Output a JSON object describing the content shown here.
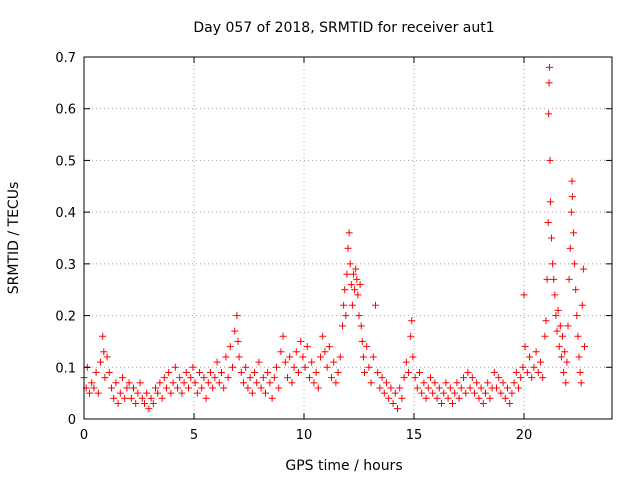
{
  "chart_data": {
    "type": "scatter",
    "title": "Day 057 of 2018, SRMTID for receiver aut1",
    "xlabel": "GPS time / hours",
    "ylabel": "SRMTID / TECUs",
    "xlim": [
      0,
      24
    ],
    "ylim": [
      0,
      0.7
    ],
    "xticks": [
      0,
      5,
      10,
      15,
      20
    ],
    "yticks": [
      0,
      0.1,
      0.2,
      0.3,
      0.4,
      0.5,
      0.6,
      0.7
    ],
    "xtick_labels": [
      "0",
      "5",
      "10",
      "15",
      "20"
    ],
    "ytick_labels": [
      "0",
      "0.1",
      "0.2",
      "0.3",
      "0.4",
      "0.5",
      "0.6",
      "0.7"
    ],
    "grid": true,
    "marker": "+",
    "color": "#ff0000",
    "series": [
      {
        "name": "SRMTID",
        "points": [
          [
            0.0,
            0.08
          ],
          [
            0.1,
            0.06
          ],
          [
            0.15,
            0.1
          ],
          [
            0.25,
            0.05
          ],
          [
            0.35,
            0.07
          ],
          [
            0.45,
            0.06
          ],
          [
            0.55,
            0.09
          ],
          [
            0.65,
            0.05
          ],
          [
            0.75,
            0.11
          ],
          [
            0.85,
            0.16
          ],
          [
            0.9,
            0.13
          ],
          [
            0.95,
            0.08
          ],
          [
            1.05,
            0.12
          ],
          [
            1.15,
            0.09
          ],
          [
            1.25,
            0.06
          ],
          [
            1.35,
            0.04
          ],
          [
            1.45,
            0.07
          ],
          [
            1.55,
            0.03
          ],
          [
            1.65,
            0.05
          ],
          [
            1.75,
            0.08
          ],
          [
            1.85,
            0.04
          ],
          [
            1.95,
            0.06
          ],
          [
            2.05,
            0.07
          ],
          [
            2.15,
            0.04
          ],
          [
            2.25,
            0.06
          ],
          [
            2.35,
            0.03
          ],
          [
            2.45,
            0.05
          ],
          [
            2.55,
            0.07
          ],
          [
            2.65,
            0.04
          ],
          [
            2.75,
            0.03
          ],
          [
            2.85,
            0.05
          ],
          [
            2.95,
            0.02
          ],
          [
            3.05,
            0.04
          ],
          [
            3.15,
            0.03
          ],
          [
            3.25,
            0.06
          ],
          [
            3.35,
            0.05
          ],
          [
            3.45,
            0.07
          ],
          [
            3.55,
            0.04
          ],
          [
            3.65,
            0.08
          ],
          [
            3.75,
            0.06
          ],
          [
            3.85,
            0.09
          ],
          [
            3.95,
            0.05
          ],
          [
            4.05,
            0.07
          ],
          [
            4.15,
            0.1
          ],
          [
            4.25,
            0.06
          ],
          [
            4.35,
            0.08
          ],
          [
            4.45,
            0.05
          ],
          [
            4.55,
            0.07
          ],
          [
            4.65,
            0.09
          ],
          [
            4.75,
            0.06
          ],
          [
            4.85,
            0.08
          ],
          [
            4.95,
            0.1
          ],
          [
            5.05,
            0.07
          ],
          [
            5.15,
            0.05
          ],
          [
            5.25,
            0.09
          ],
          [
            5.35,
            0.06
          ],
          [
            5.45,
            0.08
          ],
          [
            5.55,
            0.04
          ],
          [
            5.65,
            0.07
          ],
          [
            5.75,
            0.09
          ],
          [
            5.85,
            0.06
          ],
          [
            5.95,
            0.08
          ],
          [
            6.05,
            0.11
          ],
          [
            6.15,
            0.07
          ],
          [
            6.25,
            0.09
          ],
          [
            6.35,
            0.06
          ],
          [
            6.45,
            0.12
          ],
          [
            6.55,
            0.08
          ],
          [
            6.65,
            0.14
          ],
          [
            6.75,
            0.1
          ],
          [
            6.85,
            0.17
          ],
          [
            6.95,
            0.2
          ],
          [
            7.0,
            0.15
          ],
          [
            7.05,
            0.12
          ],
          [
            7.15,
            0.09
          ],
          [
            7.25,
            0.07
          ],
          [
            7.35,
            0.1
          ],
          [
            7.45,
            0.06
          ],
          [
            7.55,
            0.08
          ],
          [
            7.65,
            0.05
          ],
          [
            7.75,
            0.09
          ],
          [
            7.85,
            0.07
          ],
          [
            7.95,
            0.11
          ],
          [
            8.05,
            0.06
          ],
          [
            8.15,
            0.08
          ],
          [
            8.25,
            0.05
          ],
          [
            8.35,
            0.09
          ],
          [
            8.45,
            0.07
          ],
          [
            8.55,
            0.04
          ],
          [
            8.65,
            0.08
          ],
          [
            8.75,
            0.1
          ],
          [
            8.85,
            0.06
          ],
          [
            8.95,
            0.13
          ],
          [
            9.05,
            0.16
          ],
          [
            9.15,
            0.11
          ],
          [
            9.25,
            0.08
          ],
          [
            9.35,
            0.12
          ],
          [
            9.45,
            0.07
          ],
          [
            9.55,
            0.1
          ],
          [
            9.65,
            0.13
          ],
          [
            9.75,
            0.09
          ],
          [
            9.85,
            0.15
          ],
          [
            9.95,
            0.12
          ],
          [
            10.05,
            0.1
          ],
          [
            10.15,
            0.14
          ],
          [
            10.25,
            0.08
          ],
          [
            10.35,
            0.11
          ],
          [
            10.45,
            0.07
          ],
          [
            10.55,
            0.09
          ],
          [
            10.65,
            0.06
          ],
          [
            10.75,
            0.12
          ],
          [
            10.85,
            0.16
          ],
          [
            10.95,
            0.13
          ],
          [
            11.05,
            0.1
          ],
          [
            11.15,
            0.14
          ],
          [
            11.25,
            0.08
          ],
          [
            11.35,
            0.11
          ],
          [
            11.45,
            0.07
          ],
          [
            11.55,
            0.09
          ],
          [
            11.65,
            0.12
          ],
          [
            11.75,
            0.18
          ],
          [
            11.8,
            0.22
          ],
          [
            11.85,
            0.25
          ],
          [
            11.9,
            0.2
          ],
          [
            11.95,
            0.28
          ],
          [
            12.0,
            0.33
          ],
          [
            12.05,
            0.36
          ],
          [
            12.1,
            0.3
          ],
          [
            12.15,
            0.26
          ],
          [
            12.2,
            0.22
          ],
          [
            12.25,
            0.28
          ],
          [
            12.3,
            0.25
          ],
          [
            12.35,
            0.29
          ],
          [
            12.4,
            0.27
          ],
          [
            12.45,
            0.24
          ],
          [
            12.5,
            0.2
          ],
          [
            12.55,
            0.26
          ],
          [
            12.6,
            0.18
          ],
          [
            12.65,
            0.15
          ],
          [
            12.7,
            0.12
          ],
          [
            12.75,
            0.09
          ],
          [
            12.85,
            0.14
          ],
          [
            12.95,
            0.1
          ],
          [
            13.05,
            0.07
          ],
          [
            13.15,
            0.12
          ],
          [
            13.25,
            0.22
          ],
          [
            13.35,
            0.09
          ],
          [
            13.45,
            0.06
          ],
          [
            13.55,
            0.08
          ],
          [
            13.65,
            0.05
          ],
          [
            13.75,
            0.07
          ],
          [
            13.85,
            0.04
          ],
          [
            13.95,
            0.06
          ],
          [
            14.05,
            0.03
          ],
          [
            14.15,
            0.05
          ],
          [
            14.25,
            0.02
          ],
          [
            14.35,
            0.06
          ],
          [
            14.45,
            0.04
          ],
          [
            14.55,
            0.08
          ],
          [
            14.65,
            0.11
          ],
          [
            14.75,
            0.09
          ],
          [
            14.85,
            0.16
          ],
          [
            14.9,
            0.19
          ],
          [
            14.95,
            0.12
          ],
          [
            15.05,
            0.08
          ],
          [
            15.15,
            0.06
          ],
          [
            15.25,
            0.09
          ],
          [
            15.35,
            0.05
          ],
          [
            15.45,
            0.07
          ],
          [
            15.55,
            0.04
          ],
          [
            15.65,
            0.06
          ],
          [
            15.75,
            0.08
          ],
          [
            15.85,
            0.05
          ],
          [
            15.95,
            0.07
          ],
          [
            16.05,
            0.04
          ],
          [
            16.15,
            0.06
          ],
          [
            16.25,
            0.03
          ],
          [
            16.35,
            0.05
          ],
          [
            16.45,
            0.07
          ],
          [
            16.55,
            0.04
          ],
          [
            16.65,
            0.06
          ],
          [
            16.75,
            0.03
          ],
          [
            16.85,
            0.05
          ],
          [
            16.95,
            0.07
          ],
          [
            17.05,
            0.04
          ],
          [
            17.15,
            0.06
          ],
          [
            17.25,
            0.08
          ],
          [
            17.35,
            0.05
          ],
          [
            17.45,
            0.09
          ],
          [
            17.55,
            0.06
          ],
          [
            17.65,
            0.08
          ],
          [
            17.75,
            0.05
          ],
          [
            17.85,
            0.07
          ],
          [
            17.95,
            0.04
          ],
          [
            18.05,
            0.06
          ],
          [
            18.15,
            0.03
          ],
          [
            18.25,
            0.05
          ],
          [
            18.35,
            0.07
          ],
          [
            18.45,
            0.04
          ],
          [
            18.55,
            0.06
          ],
          [
            18.65,
            0.09
          ],
          [
            18.75,
            0.06
          ],
          [
            18.85,
            0.08
          ],
          [
            18.95,
            0.05
          ],
          [
            19.05,
            0.07
          ],
          [
            19.15,
            0.04
          ],
          [
            19.25,
            0.06
          ],
          [
            19.35,
            0.03
          ],
          [
            19.45,
            0.05
          ],
          [
            19.55,
            0.07
          ],
          [
            19.65,
            0.09
          ],
          [
            19.75,
            0.06
          ],
          [
            19.85,
            0.08
          ],
          [
            19.95,
            0.1
          ],
          [
            20.0,
            0.24
          ],
          [
            20.05,
            0.14
          ],
          [
            20.15,
            0.09
          ],
          [
            20.25,
            0.12
          ],
          [
            20.35,
            0.08
          ],
          [
            20.45,
            0.1
          ],
          [
            20.55,
            0.13
          ],
          [
            20.65,
            0.09
          ],
          [
            20.75,
            0.11
          ],
          [
            20.85,
            0.08
          ],
          [
            20.95,
            0.16
          ],
          [
            21.0,
            0.19
          ],
          [
            21.05,
            0.27
          ],
          [
            21.1,
            0.38
          ],
          [
            21.12,
            0.59
          ],
          [
            21.14,
            0.65
          ],
          [
            21.16,
            0.68
          ],
          [
            21.18,
            0.5
          ],
          [
            21.2,
            0.42
          ],
          [
            21.25,
            0.35
          ],
          [
            21.3,
            0.3
          ],
          [
            21.35,
            0.27
          ],
          [
            21.4,
            0.24
          ],
          [
            21.45,
            0.2
          ],
          [
            21.5,
            0.17
          ],
          [
            21.55,
            0.21
          ],
          [
            21.6,
            0.14
          ],
          [
            21.65,
            0.18
          ],
          [
            21.7,
            0.12
          ],
          [
            21.75,
            0.16
          ],
          [
            21.8,
            0.09
          ],
          [
            21.85,
            0.13
          ],
          [
            21.9,
            0.07
          ],
          [
            21.95,
            0.11
          ],
          [
            22.0,
            0.18
          ],
          [
            22.05,
            0.27
          ],
          [
            22.1,
            0.33
          ],
          [
            22.15,
            0.4
          ],
          [
            22.18,
            0.46
          ],
          [
            22.2,
            0.43
          ],
          [
            22.25,
            0.36
          ],
          [
            22.3,
            0.3
          ],
          [
            22.35,
            0.25
          ],
          [
            22.4,
            0.2
          ],
          [
            22.45,
            0.16
          ],
          [
            22.5,
            0.12
          ],
          [
            22.55,
            0.09
          ],
          [
            22.6,
            0.07
          ],
          [
            22.65,
            0.22
          ],
          [
            22.7,
            0.29
          ],
          [
            22.75,
            0.14
          ]
        ]
      }
    ]
  }
}
